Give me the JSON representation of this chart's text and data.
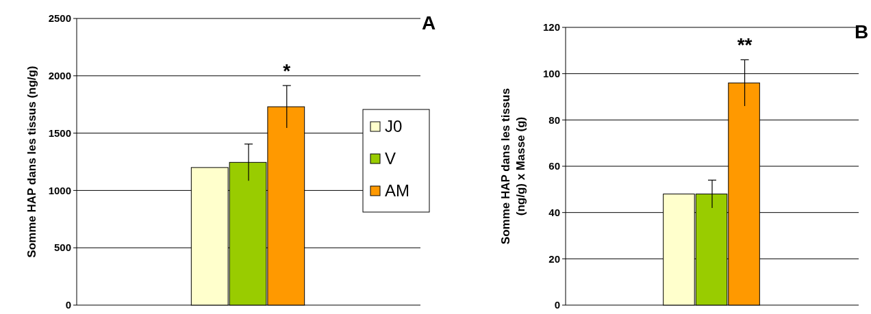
{
  "chart_data": [
    {
      "type": "bar",
      "ylabel": "Somme HAP dans les tissus (ng/g)",
      "categories": [
        null
      ],
      "ylim": [
        0,
        2500
      ],
      "yticks": [
        0,
        500,
        1000,
        1500,
        2000,
        2500
      ],
      "grid": "y",
      "legend": "right",
      "annotations": [
        {
          "text": "*",
          "y": 1915
        },
        "A"
      ],
      "series": [
        {
          "name": "J0",
          "color": "#ffffcc",
          "values": [
            1200
          ],
          "errors": [
            null
          ]
        },
        {
          "name": "V",
          "color": "#99cc00",
          "values": [
            1245
          ],
          "errors": [
            160
          ]
        },
        {
          "name": "AM",
          "color": "#ff9900",
          "values": [
            1730
          ],
          "errors": [
            185
          ]
        }
      ]
    },
    {
      "type": "bar",
      "ylabel": "Somme HAP dans les tissus (ng/g) x Masse (g)",
      "categories": [
        null
      ],
      "ylim": [
        0,
        120
      ],
      "yticks": [
        0,
        20,
        40,
        60,
        80,
        100,
        120
      ],
      "grid": "y",
      "annotations": [
        {
          "text": "**",
          "y": 106
        },
        "B"
      ],
      "series": [
        {
          "color": "#ffffcc",
          "values": [
            48
          ],
          "errors": [
            null
          ]
        },
        {
          "color": "#99cc00",
          "values": [
            48
          ],
          "errors": [
            6
          ]
        },
        {
          "color": "#ff9900",
          "values": [
            96
          ],
          "errors": [
            10
          ]
        }
      ]
    }
  ]
}
